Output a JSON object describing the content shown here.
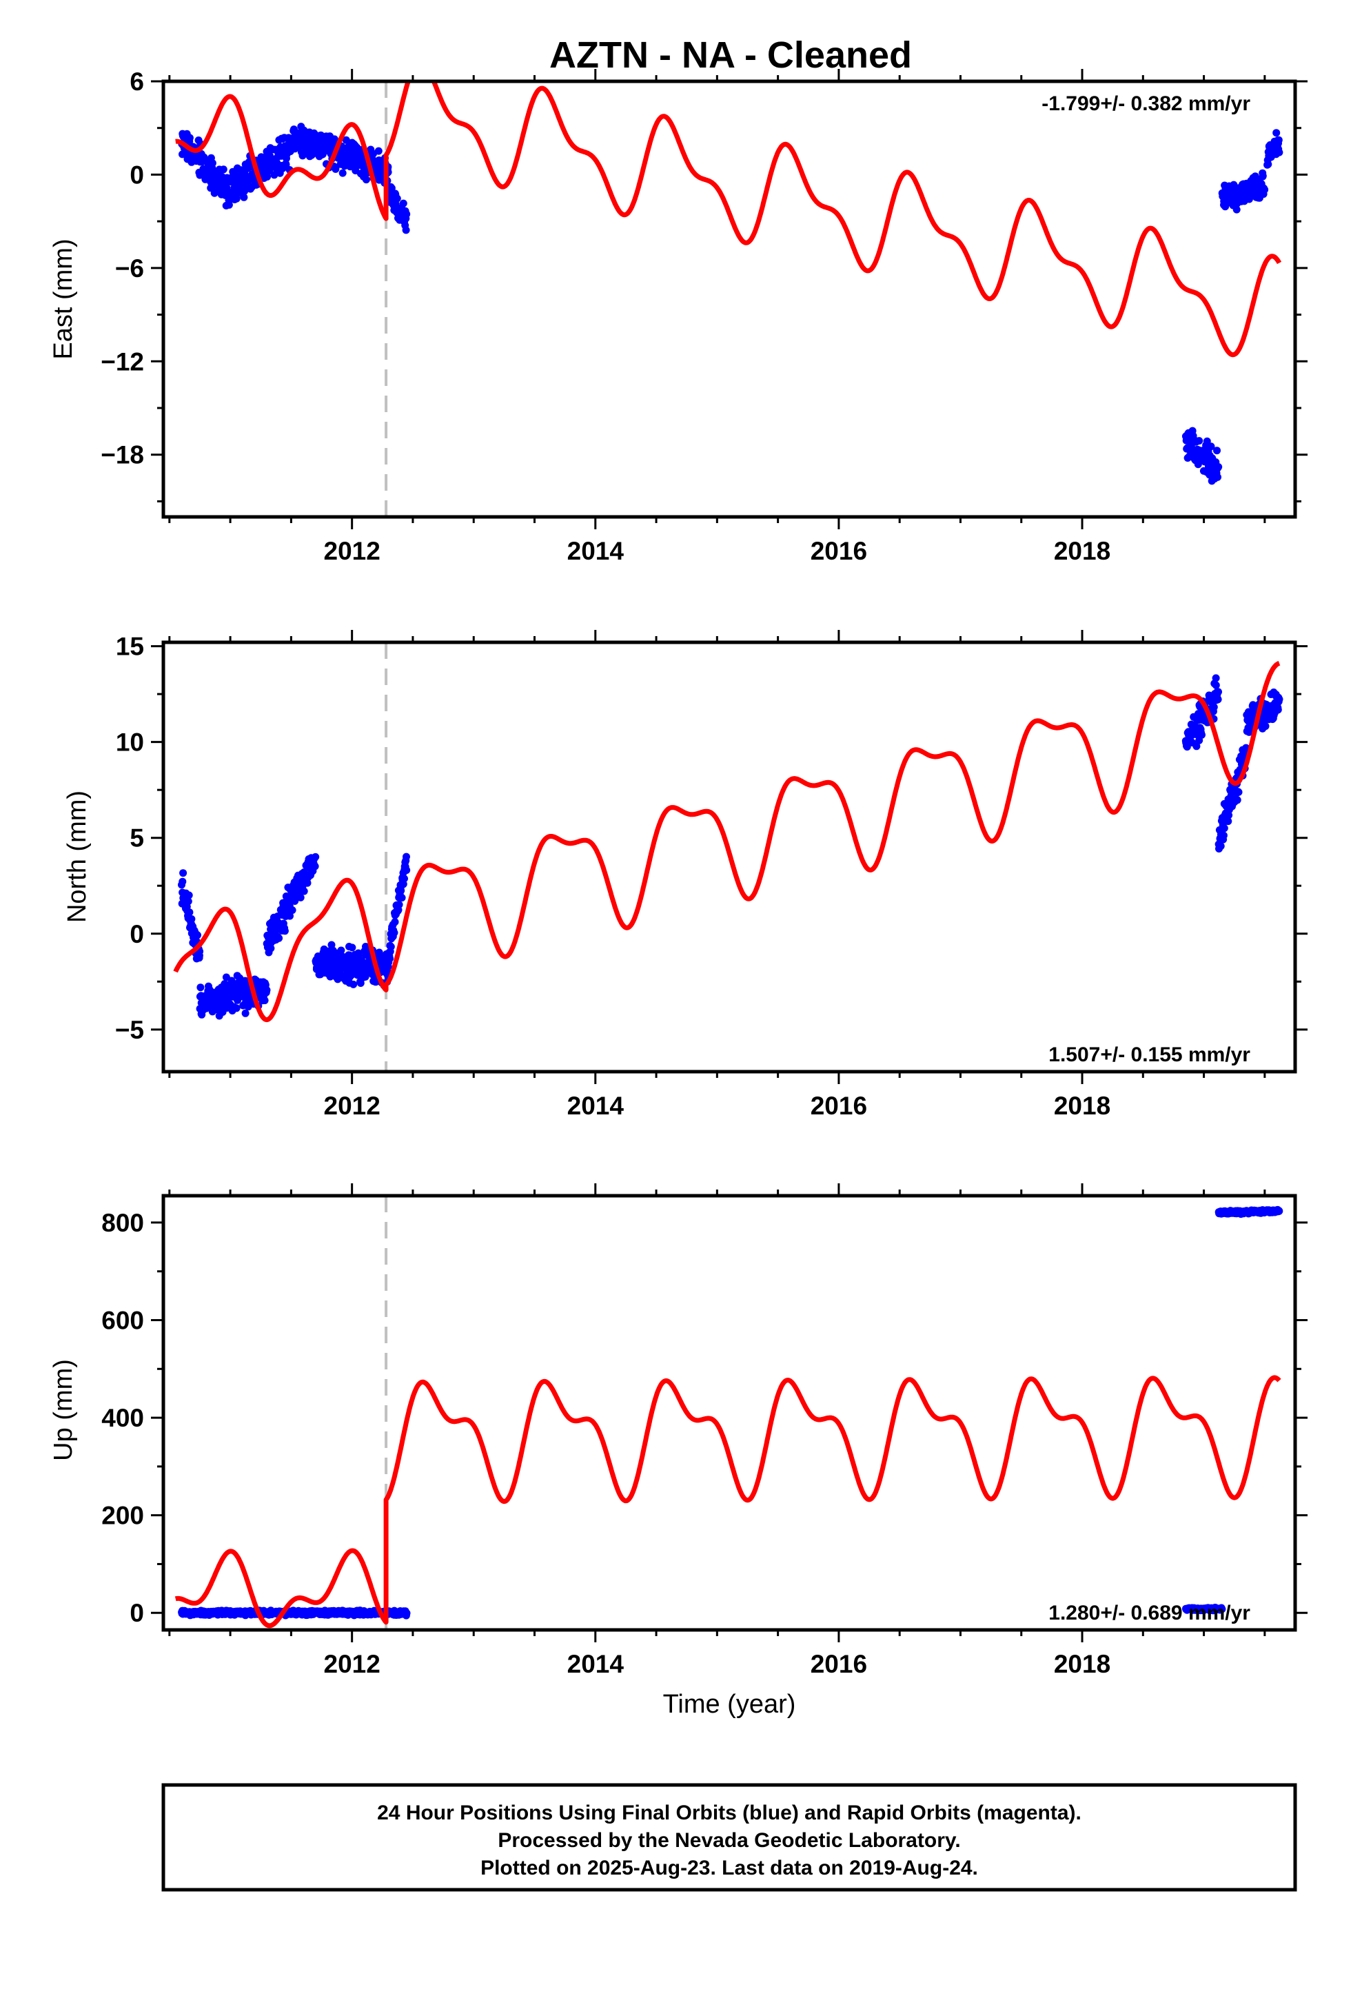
{
  "title": "AZTN  - NA - Cleaned",
  "xlabel": "Time (year)",
  "footer": {
    "line1": "24 Hour Positions Using Final Orbits (blue) and Rapid Orbits (magenta).",
    "line2": "Processed by the Nevada Geodetic Laboratory.",
    "line3": "Plotted on 2025-Aug-23. Last data on 2019-Aug-24."
  },
  "colors": {
    "data_points": "#0000ff",
    "model_curve": "#ff0000",
    "event_line": "#c0c0c0",
    "axis": "#000000"
  },
  "chart_data": [
    {
      "type": "scatter",
      "component": "east",
      "ylabel": "East (mm)",
      "rate_label": "-1.799+/- 0.382 mm/yr",
      "rate_position": "top-right",
      "xlim": [
        2010.45,
        2019.75
      ],
      "ylim": [
        -22,
        6
      ],
      "x_ticks": [
        2012,
        2014,
        2016,
        2018
      ],
      "y_ticks": [
        -18,
        -12,
        -6,
        0,
        6
      ],
      "x_minor_tick_step": 0.5,
      "y_minor_tick_step": 3,
      "grid": false,
      "event_lines": [
        2012.28
      ],
      "series": [
        {
          "kind": "points",
          "clusters": [
            {
              "x": [
                2010.6,
                2011.0
              ],
              "center": [
                2.2,
                -1.2
              ],
              "spread": 1.6,
              "density": 300
            },
            {
              "x": [
                2011.0,
                2011.5
              ],
              "center": [
                -1.0,
                1.8
              ],
              "spread": 1.6,
              "density": 300
            },
            {
              "x": [
                2011.5,
                2012.3
              ],
              "center": [
                2.5,
                0.3
              ],
              "spread": 1.5,
              "density": 350
            },
            {
              "x": [
                2012.3,
                2012.45
              ],
              "center": [
                -1.2,
                -3.0
              ],
              "spread": 1.2,
              "density": 300
            },
            {
              "x": [
                2018.85,
                2019.12
              ],
              "center": [
                -17.0,
                -19.0
              ],
              "spread": 1.4,
              "density": 320
            },
            {
              "x": [
                2019.15,
                2019.5
              ],
              "center": [
                -1.5,
                -0.8
              ],
              "spread": 1.2,
              "density": 350
            },
            {
              "x": [
                2019.52,
                2019.62
              ],
              "center": [
                1.0,
                2.2
              ],
              "spread": 0.9,
              "density": 350
            }
          ]
        },
        {
          "kind": "model",
          "segments": [
            {
              "x": [
                2010.55,
                2012.28
              ],
              "offset": 2.6,
              "rate": -1.799,
              "annual_amp": 2.1,
              "annual_phase": 0.3,
              "semi_amp": 1.3,
              "semi_phase": 0.6
            },
            {
              "x": [
                2012.28,
                2019.62
              ],
              "offset": 4.4,
              "rate": -1.799,
              "annual_amp": 2.7,
              "annual_phase": 0.6,
              "semi_amp": 1.3,
              "semi_phase": 0.6
            }
          ]
        }
      ]
    },
    {
      "type": "scatter",
      "component": "north",
      "ylabel": "North (mm)",
      "rate_label": "1.507+/- 0.155 mm/yr",
      "rate_position": "bottom-right",
      "xlim": [
        2010.45,
        2019.75
      ],
      "ylim": [
        -7.2,
        15.2
      ],
      "x_ticks": [
        2012,
        2014,
        2016,
        2018
      ],
      "y_ticks": [
        -5,
        0,
        5,
        10,
        15
      ],
      "x_minor_tick_step": 0.5,
      "y_minor_tick_step": 2.5,
      "grid": false,
      "event_lines": [
        2012.28
      ],
      "series": [
        {
          "kind": "points",
          "clusters": [
            {
              "x": [
                2010.6,
                2010.75
              ],
              "center": [
                2.5,
                -1.0
              ],
              "spread": 1.2,
              "density": 400
            },
            {
              "x": [
                2010.75,
                2011.3
              ],
              "center": [
                -3.5,
                -3.0
              ],
              "spread": 1.2,
              "density": 400
            },
            {
              "x": [
                2011.3,
                2011.7
              ],
              "center": [
                -0.5,
                4.0
              ],
              "spread": 1.2,
              "density": 350
            },
            {
              "x": [
                2011.7,
                2012.3
              ],
              "center": [
                -1.5,
                -1.8
              ],
              "spread": 1.2,
              "density": 400
            },
            {
              "x": [
                2012.3,
                2012.45
              ],
              "center": [
                -1.0,
                3.8
              ],
              "spread": 0.9,
              "density": 350
            },
            {
              "x": [
                2018.85,
                2019.12
              ],
              "center": [
                10.0,
                12.5
              ],
              "spread": 1.3,
              "density": 350
            },
            {
              "x": [
                2019.12,
                2019.35
              ],
              "center": [
                5.0,
                9.5
              ],
              "spread": 1.3,
              "density": 350
            },
            {
              "x": [
                2019.35,
                2019.62
              ],
              "center": [
                11.0,
                12.0
              ],
              "spread": 1.2,
              "density": 350
            }
          ]
        },
        {
          "kind": "model",
          "segments": [
            {
              "x": [
                2010.55,
                2012.28
              ],
              "offset": -2.1,
              "rate": 1.507,
              "annual_amp": 2.7,
              "annual_phase": 0.4,
              "semi_amp": 1.0,
              "semi_phase": 0.6
            },
            {
              "x": [
                2012.28,
                2019.62
              ],
              "offset": 0.9,
              "rate": 1.507,
              "annual_amp": 2.6,
              "annual_phase": 0.5,
              "semi_amp": 1.0,
              "semi_phase": 0.6
            }
          ]
        }
      ]
    },
    {
      "type": "scatter",
      "component": "up",
      "ylabel": "Up (mm)",
      "rate_label": "1.280+/- 0.689 mm/yr",
      "rate_position": "bottom-right",
      "xlim": [
        2010.45,
        2019.75
      ],
      "ylim": [
        -35,
        855
      ],
      "x_ticks": [
        2012,
        2014,
        2016,
        2018
      ],
      "y_ticks": [
        0,
        200,
        400,
        600,
        800
      ],
      "x_minor_tick_step": 0.5,
      "y_minor_tick_step": 100,
      "grid": false,
      "event_lines": [
        2012.28
      ],
      "series": [
        {
          "kind": "points",
          "clusters": [
            {
              "x": [
                2010.6,
                2012.45
              ],
              "center": [
                0,
                0
              ],
              "spread": 6,
              "density": 500
            },
            {
              "x": [
                2018.85,
                2019.15
              ],
              "center": [
                8,
                8
              ],
              "spread": 4,
              "density": 350
            },
            {
              "x": [
                2019.12,
                2019.62
              ],
              "center": [
                820,
                824
              ],
              "spread": 5,
              "density": 400
            }
          ]
        },
        {
          "kind": "model",
          "segments": [
            {
              "x": [
                2010.55,
                2012.28
              ],
              "offset": 40,
              "rate": 1.28,
              "annual_amp": 55,
              "annual_phase": 0.3,
              "semi_amp": 35,
              "semi_phase": 0.6
            },
            {
              "x": [
                2012.28,
                2019.62
              ],
              "offset": 365,
              "rate": 1.28,
              "annual_amp": 95,
              "annual_phase": 0.55,
              "semi_amp": 50,
              "semi_phase": 0.6
            }
          ]
        }
      ]
    }
  ]
}
